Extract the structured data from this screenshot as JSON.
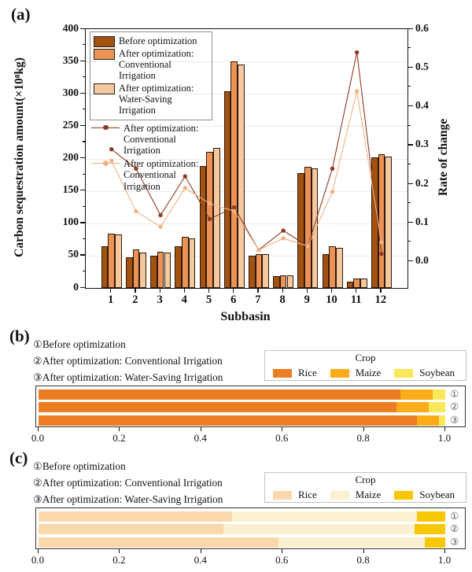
{
  "chart_data": [
    {
      "type": "bar",
      "panel_label": "(a)",
      "xlabel": "Subbasin",
      "ylabel": "Carbon sequestration amount(×10⁸kg)",
      "ylabel_right": "Rate of change",
      "categories": [
        "1",
        "2",
        "3",
        "4",
        "5",
        "6",
        "7",
        "8",
        "9",
        "10",
        "11",
        "12"
      ],
      "ylim": [
        0,
        400
      ],
      "yticks": [
        0,
        50,
        100,
        150,
        200,
        250,
        300,
        350,
        400
      ],
      "ylim_right": [
        -0.068,
        0.6
      ],
      "yticks_right": [
        "0.0",
        "0.1",
        "0.2",
        "0.3",
        "0.4",
        "0.5",
        "0.6"
      ],
      "grid": "horizontal-dotted",
      "legend_position": "upper-left-inside",
      "bar_series": [
        {
          "name": "Before optimization",
          "color": "#A3520F",
          "values": [
            65,
            48,
            50,
            65,
            188,
            304,
            50,
            18,
            178,
            52,
            10,
            202
          ]
        },
        {
          "name": "After optimization: Conventional Irrigation",
          "color": "#EB9254",
          "values": [
            84,
            60,
            56,
            79,
            210,
            350,
            52,
            20,
            187,
            64,
            15,
            207
          ]
        },
        {
          "name": "After optimization: Water-Saving Irrigation",
          "color": "#F6C89E",
          "values": [
            83,
            55,
            55,
            77,
            217,
            345,
            52,
            20,
            185,
            62,
            14,
            203
          ]
        }
      ],
      "line_series": [
        {
          "name": "After optimization: Conventional Irrigation",
          "color": "#8E3B25",
          "values": [
            0.29,
            0.24,
            0.12,
            0.22,
            0.11,
            0.14,
            0.03,
            0.08,
            0.04,
            0.24,
            0.54,
            0.02
          ]
        },
        {
          "name": "After optimization: Conventional Irrigation",
          "color": "#F2B384",
          "values": [
            0.26,
            0.13,
            0.09,
            0.19,
            0.15,
            0.13,
            0.03,
            0.06,
            0.04,
            0.18,
            0.44,
            0.05
          ]
        }
      ]
    },
    {
      "type": "bar",
      "orientation": "horizontal-stacked",
      "panel_label": "(b)",
      "annotations": [
        "①Before optimization",
        "②After optimization: Conventional Irrigation",
        "③After optimization: Water-Saving Irrigation"
      ],
      "legend_title": "Crop",
      "series": [
        {
          "name": "Rice",
          "color": "#ED7D22"
        },
        {
          "name": "Maize",
          "color": "#FBAC18"
        },
        {
          "name": "Soybean",
          "color": "#FBE85A"
        }
      ],
      "bars": [
        {
          "mark": "①",
          "values": [
            0.89,
            0.08,
            0.03
          ]
        },
        {
          "mark": "②",
          "values": [
            0.88,
            0.08,
            0.04
          ]
        },
        {
          "mark": "③",
          "values": [
            0.93,
            0.055,
            0.015
          ]
        }
      ],
      "xlim": [
        0,
        1
      ],
      "xticks": [
        "0.0",
        "0.2",
        "0.4",
        "0.6",
        "0.8",
        "1.0"
      ]
    },
    {
      "type": "bar",
      "orientation": "horizontal-stacked",
      "panel_label": "(c)",
      "annotations": [
        "①Before optimization",
        "②After optimization: Conventional Irrigation",
        "③After optimization: Water-Saving Irrigation"
      ],
      "legend_title": "Crop",
      "series": [
        {
          "name": "Rice",
          "color": "#FAD8AC"
        },
        {
          "name": "Maize",
          "color": "#FCF0D3"
        },
        {
          "name": "Soybean",
          "color": "#F8C703"
        }
      ],
      "bars": [
        {
          "mark": "①",
          "values": [
            0.475,
            0.455,
            0.07
          ]
        },
        {
          "mark": "②",
          "values": [
            0.455,
            0.47,
            0.075
          ]
        },
        {
          "mark": "③",
          "values": [
            0.59,
            0.36,
            0.05
          ]
        }
      ],
      "xlim": [
        0,
        1
      ],
      "xticks": [
        "0.0",
        "0.2",
        "0.4",
        "0.6",
        "0.8",
        "1.0"
      ]
    }
  ]
}
